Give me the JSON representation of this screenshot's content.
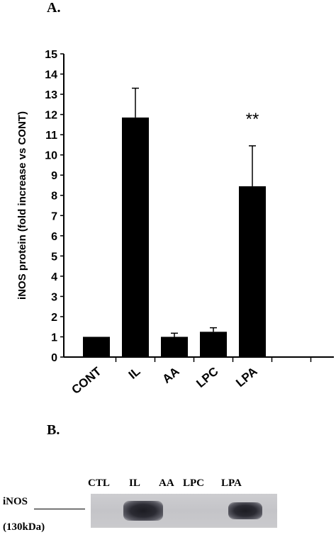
{
  "panel_a_label": "A.",
  "panel_b_label": "B.",
  "chart_data": {
    "type": "bar",
    "ylabel": "iNOS protein (fold  increase vs CONT)",
    "categories": [
      "CONT",
      "IL",
      "AA",
      "LPC",
      "LPA"
    ],
    "values": [
      1.0,
      11.85,
      1.0,
      1.25,
      8.45
    ],
    "errors": [
      0,
      1.45,
      0.18,
      0.2,
      2.0
    ],
    "ylim": [
      0,
      15
    ],
    "yticks": [
      "0",
      "1",
      "2",
      "3",
      "4",
      "5",
      "6",
      "7",
      "8",
      "9",
      "10",
      "11",
      "12",
      "13",
      "14",
      "15"
    ],
    "annotation": {
      "text": "**",
      "category": "LPA"
    },
    "bar_color": "#000000",
    "grid": false
  },
  "blot": {
    "lanes": [
      "CTL",
      "IL",
      "AA",
      "LPC",
      "LPA"
    ],
    "band_intensity": [
      0,
      1,
      0,
      0,
      0.85
    ],
    "protein_label": "iNOS",
    "size_label": "(130kDa)"
  }
}
